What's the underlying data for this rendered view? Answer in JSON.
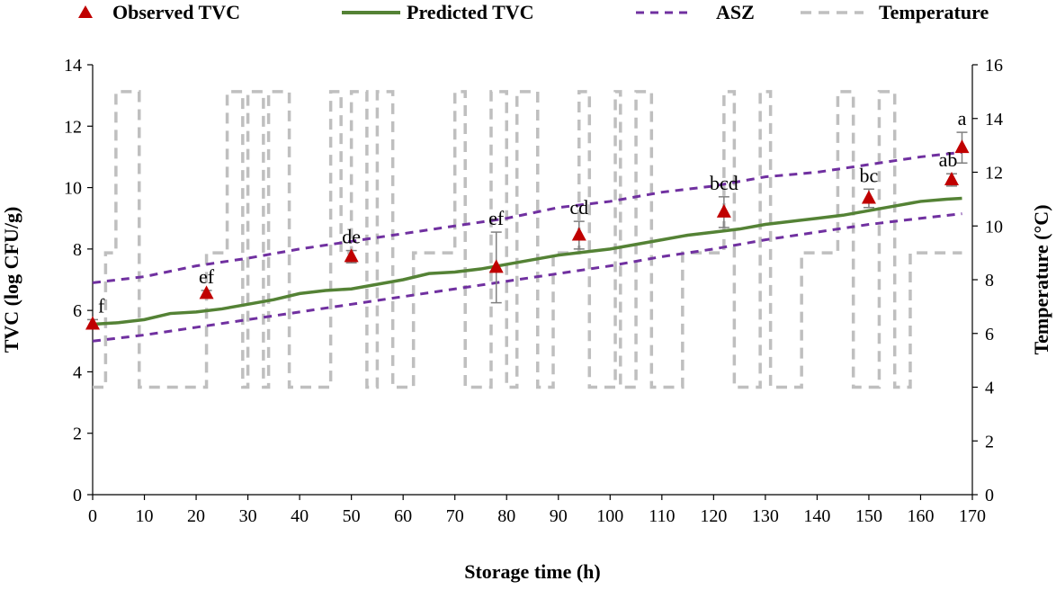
{
  "chart_data": {
    "type": "line",
    "title": "",
    "xlabel": "Storage time (h)",
    "ylabel": "TVC (log CFU/g)",
    "y2label": "Temperature (°C)",
    "xlim": [
      0,
      170
    ],
    "ylim": [
      0,
      14
    ],
    "y2lim": [
      0,
      16
    ],
    "xticks": [
      0,
      10,
      20,
      30,
      40,
      50,
      60,
      70,
      80,
      90,
      100,
      110,
      120,
      130,
      140,
      150,
      160,
      170
    ],
    "yticks": [
      0,
      2,
      4,
      6,
      8,
      10,
      12,
      14
    ],
    "y2ticks": [
      0,
      2,
      4,
      6,
      8,
      10,
      12,
      14,
      16
    ],
    "legend_position": "top",
    "legend": [
      {
        "key": "observed",
        "label": "Observed TVC"
      },
      {
        "key": "predicted",
        "label": "Predicted TVC"
      },
      {
        "key": "asz",
        "label": "ASZ"
      },
      {
        "key": "temperature",
        "label": "Temperature"
      }
    ],
    "colors": {
      "observed": "#c00000",
      "predicted": "#548235",
      "asz": "#7030a0",
      "temperature": "#bfbfbf",
      "error_bar": "#7f7f7f"
    },
    "observed": [
      {
        "x": 0,
        "y": 5.55,
        "err": 0.15,
        "label": "f"
      },
      {
        "x": 22,
        "y": 6.55,
        "err": 0.1,
        "label": "ef"
      },
      {
        "x": 50,
        "y": 7.75,
        "err": 0.2,
        "label": "de"
      },
      {
        "x": 78,
        "y": 7.4,
        "err": 1.15,
        "label": "ef"
      },
      {
        "x": 94,
        "y": 8.45,
        "err": 0.45,
        "label": "cd"
      },
      {
        "x": 122,
        "y": 9.2,
        "err": 0.5,
        "label": "bcd"
      },
      {
        "x": 150,
        "y": 9.65,
        "err": 0.3,
        "label": "bc"
      },
      {
        "x": 166,
        "y": 10.25,
        "err": 0.2,
        "label": "ab"
      },
      {
        "x": 168,
        "y": 11.3,
        "err": 0.5,
        "label": "a"
      }
    ],
    "predicted": {
      "x": [
        0,
        5,
        10,
        15,
        20,
        25,
        30,
        35,
        40,
        45,
        50,
        55,
        60,
        65,
        70,
        75,
        80,
        85,
        90,
        95,
        100,
        105,
        110,
        115,
        120,
        125,
        130,
        135,
        140,
        145,
        150,
        155,
        160,
        165,
        168
      ],
      "y": [
        5.55,
        5.6,
        5.7,
        5.9,
        5.95,
        6.05,
        6.2,
        6.35,
        6.55,
        6.65,
        6.7,
        6.85,
        7.0,
        7.2,
        7.25,
        7.35,
        7.5,
        7.65,
        7.8,
        7.9,
        8.0,
        8.15,
        8.3,
        8.45,
        8.55,
        8.65,
        8.8,
        8.9,
        9.0,
        9.1,
        9.25,
        9.4,
        9.55,
        9.62,
        9.65
      ]
    },
    "asz_upper": {
      "x": [
        0,
        10,
        20,
        30,
        40,
        50,
        60,
        70,
        80,
        90,
        100,
        110,
        120,
        130,
        140,
        150,
        160,
        168
      ],
      "y": [
        6.9,
        7.1,
        7.45,
        7.7,
        8.0,
        8.25,
        8.5,
        8.75,
        9.0,
        9.35,
        9.55,
        9.85,
        10.05,
        10.35,
        10.5,
        10.75,
        11.0,
        11.15
      ]
    },
    "asz_lower": {
      "x": [
        0,
        10,
        20,
        30,
        40,
        50,
        60,
        70,
        80,
        90,
        100,
        110,
        120,
        130,
        140,
        150,
        160,
        168
      ],
      "y": [
        5.0,
        5.2,
        5.45,
        5.7,
        5.95,
        6.2,
        6.45,
        6.7,
        6.95,
        7.2,
        7.45,
        7.75,
        8.0,
        8.3,
        8.55,
        8.8,
        9.0,
        9.15
      ]
    },
    "temperature_series": {
      "x": [
        0,
        2.5,
        2.5,
        4.5,
        4.5,
        9,
        9,
        12,
        12,
        13,
        13,
        22,
        22,
        26,
        26,
        29,
        29,
        30,
        30,
        33,
        33,
        34,
        34,
        38,
        38,
        40,
        40,
        46,
        46,
        48,
        48,
        50,
        50,
        53,
        53,
        55,
        55,
        58,
        58,
        61,
        61,
        62,
        62,
        70,
        70,
        72,
        72,
        77,
        77,
        80,
        80,
        82,
        82,
        86,
        86,
        89,
        89,
        94,
        94,
        96,
        96,
        101,
        101,
        102,
        102,
        105,
        105,
        108,
        108,
        112,
        112,
        114,
        114,
        122,
        122,
        124,
        124,
        129,
        129,
        131,
        131,
        134,
        134,
        137,
        137,
        144,
        144,
        147,
        147,
        152,
        152,
        155,
        155,
        158,
        158,
        165,
        165,
        168
      ],
      "y": [
        4,
        4,
        9,
        9,
        15,
        15,
        4,
        4,
        4,
        4,
        4,
        4,
        9,
        9,
        15,
        15,
        4,
        4,
        15,
        15,
        4,
        4,
        15,
        15,
        4,
        4,
        4,
        4,
        15,
        15,
        9,
        9,
        15,
        15,
        4,
        4,
        15,
        15,
        4,
        4,
        4,
        4,
        9,
        9,
        15,
        15,
        4,
        4,
        15,
        15,
        4,
        4,
        15,
        15,
        4,
        4,
        9,
        9,
        15,
        15,
        4,
        4,
        15,
        15,
        4,
        4,
        15,
        15,
        4,
        4,
        4,
        4,
        9,
        9,
        15,
        15,
        4,
        4,
        15,
        15,
        4,
        4,
        4,
        4,
        9,
        9,
        15,
        15,
        4,
        4,
        15,
        15,
        4,
        4,
        9,
        9,
        9,
        9
      ]
    }
  }
}
